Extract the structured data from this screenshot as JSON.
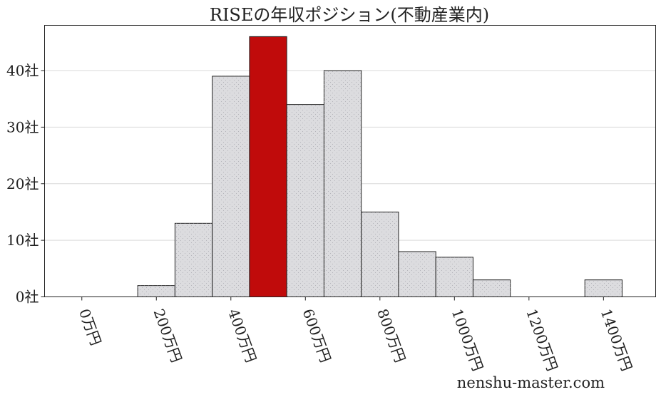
{
  "chart_data": {
    "type": "bar",
    "title": "RISEの年収ポジション(不動産業内)",
    "xlabel": "",
    "ylabel": "",
    "bin_width": 100,
    "bins": [
      {
        "center": 0,
        "count": 0
      },
      {
        "center": 100,
        "count": 0
      },
      {
        "center": 200,
        "count": 2
      },
      {
        "center": 300,
        "count": 13
      },
      {
        "center": 400,
        "count": 39
      },
      {
        "center": 500,
        "count": 46,
        "highlight": true
      },
      {
        "center": 600,
        "count": 34
      },
      {
        "center": 700,
        "count": 40
      },
      {
        "center": 800,
        "count": 15
      },
      {
        "center": 900,
        "count": 8
      },
      {
        "center": 1000,
        "count": 7
      },
      {
        "center": 1100,
        "count": 3
      },
      {
        "center": 1200,
        "count": 0
      },
      {
        "center": 1300,
        "count": 0
      },
      {
        "center": 1400,
        "count": 3
      }
    ],
    "xlim": [
      -100,
      1540
    ],
    "ylim": [
      0,
      48
    ],
    "x_ticks": [
      {
        "value": 0,
        "label": "0万円"
      },
      {
        "value": 200,
        "label": "200万円"
      },
      {
        "value": 400,
        "label": "400万円"
      },
      {
        "value": 600,
        "label": "600万円"
      },
      {
        "value": 800,
        "label": "800万円"
      },
      {
        "value": 1000,
        "label": "1000万円"
      },
      {
        "value": 1200,
        "label": "1200万円"
      },
      {
        "value": 1400,
        "label": "1400万円"
      }
    ],
    "y_ticks": [
      {
        "value": 0,
        "label": "0社"
      },
      {
        "value": 10,
        "label": "10社"
      },
      {
        "value": 20,
        "label": "20社"
      },
      {
        "value": 30,
        "label": "30社"
      },
      {
        "value": 40,
        "label": "40社"
      }
    ],
    "grid": "horizontal",
    "colors": {
      "bar": "#dcdcdf",
      "highlight": "#c00b0b",
      "edge": "#222222",
      "grid": "#d9d9d9"
    }
  },
  "watermark": "nenshu-master.com"
}
